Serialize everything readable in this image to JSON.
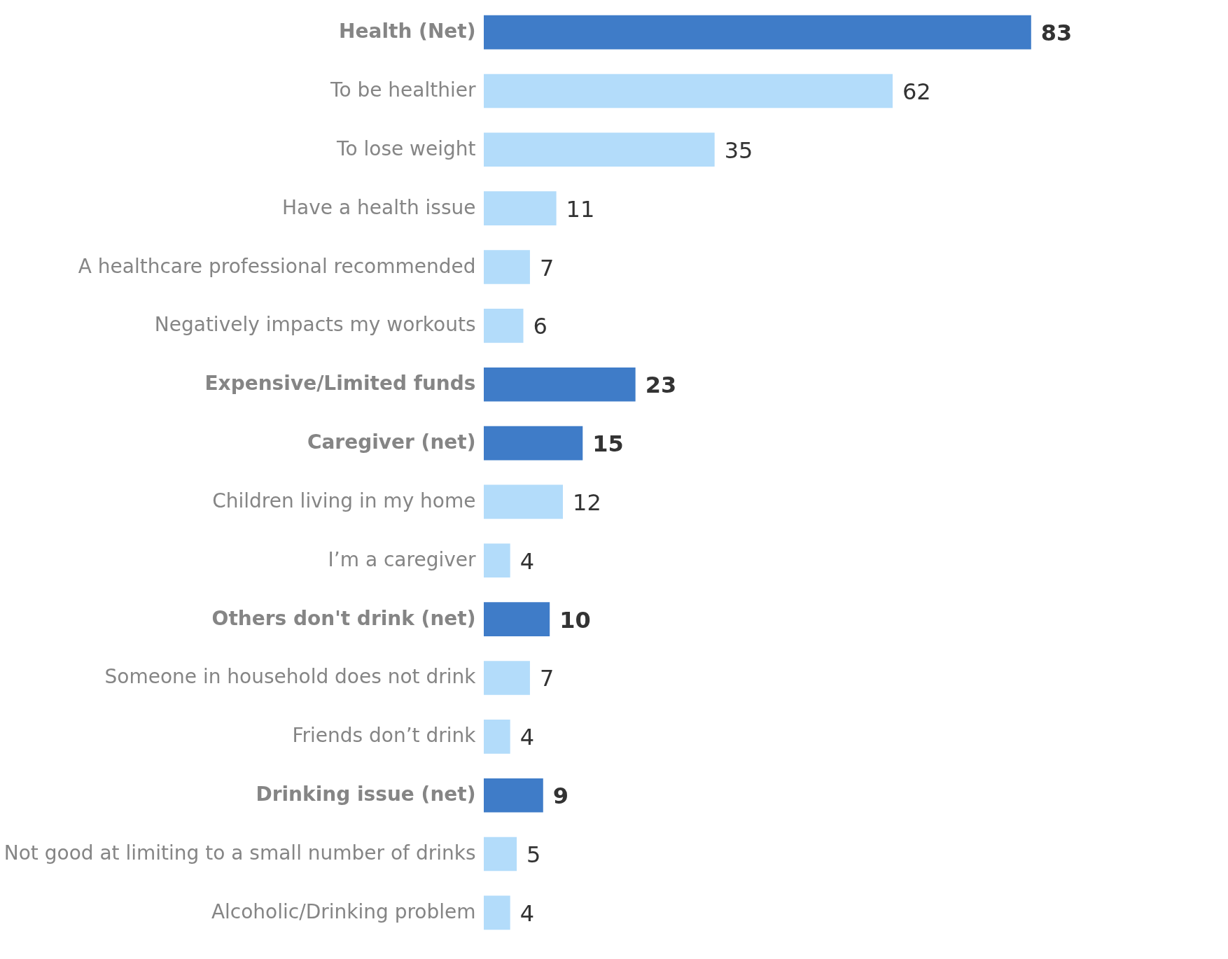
{
  "chart_data": {
    "type": "bar",
    "orientation": "horizontal",
    "data_labels": true,
    "categories": [
      "Health (Net)",
      "To be healthier",
      "To lose weight",
      "Have a health issue",
      "A healthcare professional recommended",
      "Negatively impacts my workouts",
      "Expensive/Limited funds",
      "Caregiver (net)",
      "Children living in my home",
      "I’m a caregiver",
      "Others don't drink (net)",
      "Someone in household does not drink",
      "Friends don’t drink",
      "Drinking issue (net)",
      "Not good at limiting to a small number of drinks",
      "Alcoholic/Drinking problem"
    ],
    "values": [
      83,
      62,
      35,
      11,
      7,
      6,
      23,
      15,
      12,
      4,
      10,
      7,
      4,
      9,
      5,
      4
    ],
    "colors": [
      "#3f7cc8",
      "#b3dcfa",
      "#b3dcfa",
      "#b3dcfa",
      "#b3dcfa",
      "#b3dcfa",
      "#3f7cc8",
      "#3f7cc8",
      "#b3dcfa",
      "#b3dcfa",
      "#3f7cc8",
      "#b3dcfa",
      "#b3dcfa",
      "#3f7cc8",
      "#b3dcfa",
      "#b3dcfa"
    ]
  }
}
